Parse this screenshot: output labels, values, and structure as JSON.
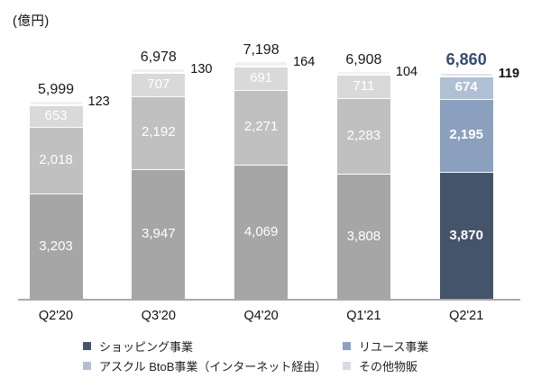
{
  "unit_label": "(億円)",
  "chart_data": {
    "type": "bar",
    "stacked": true,
    "title": "",
    "ylabel": "(億円)",
    "xlabel": "",
    "grid": false,
    "legend_position": "bottom",
    "categories": [
      "Q2'20",
      "Q3'20",
      "Q4'20",
      "Q1'21",
      "Q2'21"
    ],
    "series": [
      {
        "name": "ショッピング事業",
        "values": [
          3203,
          3947,
          4069,
          3808,
          3870
        ]
      },
      {
        "name": "リユース事業",
        "values": [
          2018,
          2192,
          2271,
          2283,
          2195
        ]
      },
      {
        "name": "アスクル BtoB事業（インターネット経由）",
        "values": [
          653,
          707,
          691,
          711,
          674
        ]
      },
      {
        "name": "その他物販",
        "values": [
          123,
          130,
          164,
          104,
          119
        ]
      }
    ],
    "totals": [
      5999,
      6978,
      7198,
      6908,
      6860
    ],
    "highlight_category": "Q2'21",
    "highlight_index": 4,
    "ylim": [
      0,
      7500
    ]
  },
  "colors": {
    "normal": [
      "#a6a6a6",
      "#c0c0c0",
      "#d9d9d9",
      "#f1f1f1"
    ],
    "highlight": [
      "#44546a",
      "#8ba0be",
      "#b0c0d4",
      "#dfe5ee"
    ],
    "legend": [
      "#44546a",
      "#8ba0be",
      "#b0c0d4",
      "#d6dce5"
    ],
    "axis": "#aaaaaa",
    "total_label_normal": "#1a1a1a",
    "total_label_highlight": "#304d73",
    "segment_label": "#ffffff"
  },
  "legend": {
    "items": [
      {
        "label": "ショッピング事業"
      },
      {
        "label": "リユース事業"
      },
      {
        "label": "アスクル BtoB事業（インターネット経由）"
      },
      {
        "label": "その他物販"
      }
    ]
  }
}
